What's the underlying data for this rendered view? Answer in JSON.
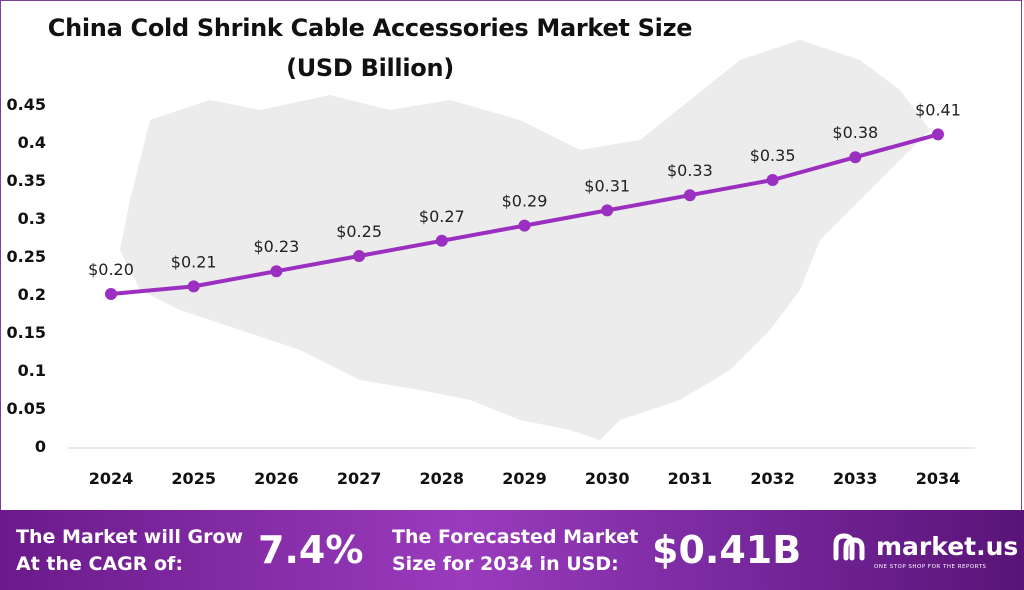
{
  "title_line1": "China Cold Shrink Cable Accessories Market Size",
  "title_line2": "(USD Billion)",
  "chart_data": {
    "type": "line",
    "categories": [
      "2024",
      "2025",
      "2026",
      "2027",
      "2028",
      "2029",
      "2030",
      "2031",
      "2032",
      "2033",
      "2034"
    ],
    "values": [
      0.2,
      0.21,
      0.23,
      0.25,
      0.27,
      0.29,
      0.31,
      0.33,
      0.35,
      0.38,
      0.41
    ],
    "data_labels": [
      "$0.20",
      "$0.21",
      "$0.23",
      "$0.25",
      "$0.27",
      "$0.29",
      "$0.31",
      "$0.33",
      "$0.35",
      "$0.38",
      "$0.41"
    ],
    "y_ticks": [
      "0",
      "0.05",
      "0.1",
      "0.15",
      "0.2",
      "0.25",
      "0.3",
      "0.35",
      "0.4",
      "0.45"
    ],
    "ylim": [
      0,
      0.45
    ],
    "grid": false,
    "line_color": "#9b30c0"
  },
  "footer": {
    "cagr_text_line1": "The Market will Grow",
    "cagr_text_line2": "At the CAGR of:",
    "cagr_value": "7.4%",
    "forecast_text_line1": "The Forecasted Market",
    "forecast_text_line2": "Size for 2034 in USD:",
    "forecast_value": "$0.41B",
    "logo_name": "market.us",
    "logo_tagline": "ONE STOP SHOP FOR THE REPORTS",
    "logo_icon": "market-us-logo-icon"
  }
}
